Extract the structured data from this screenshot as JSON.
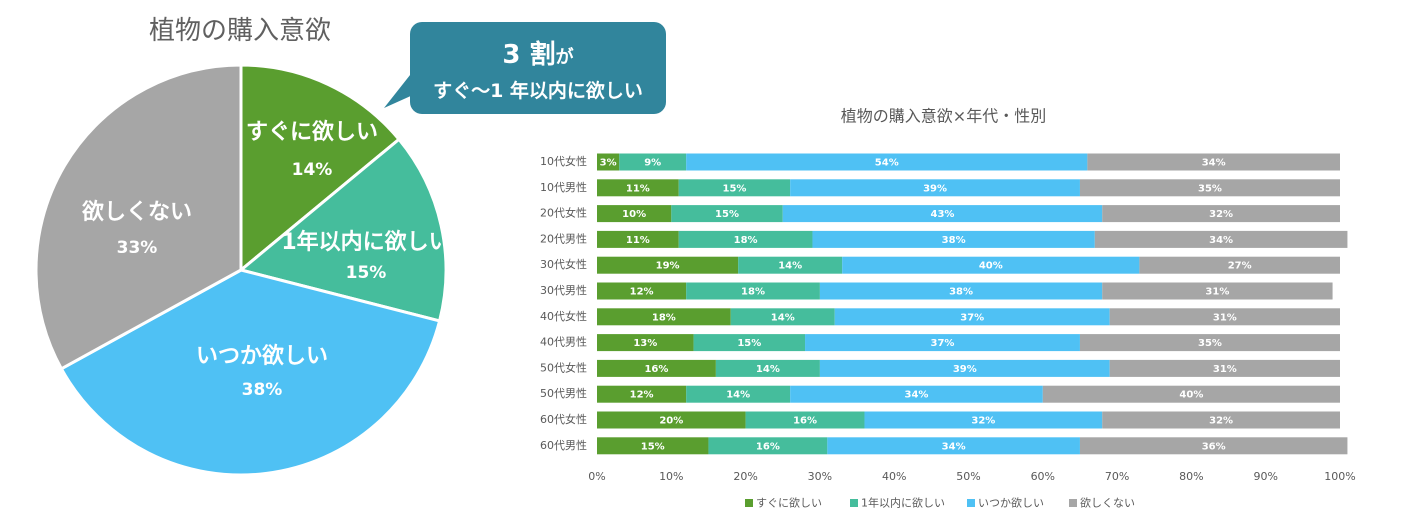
{
  "chart_data": [
    {
      "type": "pie",
      "title": "植物の購入意欲",
      "slices": [
        {
          "label": "すぐに欲しい",
          "value": 14,
          "display": "14%",
          "color": "#5a9e2f"
        },
        {
          "label": "1年以内に欲しい",
          "value": 15,
          "display": "15%",
          "color": "#45bd9c"
        },
        {
          "label": "いつか欲しい",
          "value": 38,
          "display": "38%",
          "color": "#4fc1f4"
        },
        {
          "label": "欲しくない",
          "value": 33,
          "display": "33%",
          "color": "#a6a6a6"
        }
      ]
    },
    {
      "type": "bar",
      "orientation": "horizontal",
      "stacked": "percent",
      "title": "植物の購入意欲×年代・性別",
      "categories": [
        "10代女性",
        "10代男性",
        "20代女性",
        "20代男性",
        "30代女性",
        "30代男性",
        "40代女性",
        "40代男性",
        "50代女性",
        "50代男性",
        "60代女性",
        "60代男性"
      ],
      "series": [
        {
          "name": "すぐに欲しい",
          "color": "#5a9e2f",
          "values": [
            3,
            11,
            10,
            11,
            19,
            12,
            18,
            13,
            16,
            12,
            20,
            15
          ]
        },
        {
          "name": "1年以内に欲しい",
          "color": "#45bd9c",
          "values": [
            9,
            15,
            15,
            18,
            14,
            18,
            14,
            15,
            14,
            14,
            16,
            16
          ]
        },
        {
          "name": "いつか欲しい",
          "color": "#4fc1f4",
          "values": [
            54,
            39,
            43,
            38,
            40,
            38,
            37,
            37,
            39,
            34,
            32,
            34
          ]
        },
        {
          "name": "欲しくない",
          "color": "#a6a6a6",
          "values": [
            34,
            35,
            32,
            34,
            27,
            31,
            31,
            35,
            31,
            40,
            32,
            36
          ]
        }
      ],
      "xlim": [
        0,
        100
      ],
      "xticks": [
        "0%",
        "10%",
        "20%",
        "30%",
        "40%",
        "50%",
        "60%",
        "70%",
        "80%",
        "90%",
        "100%"
      ],
      "legend_position": "bottom",
      "grid": false
    }
  ],
  "callout": {
    "line1_number": "3 割",
    "line1_suffix": "が",
    "line2": "すぐ〜1 年以内に欲しい",
    "color": "#31859c"
  }
}
